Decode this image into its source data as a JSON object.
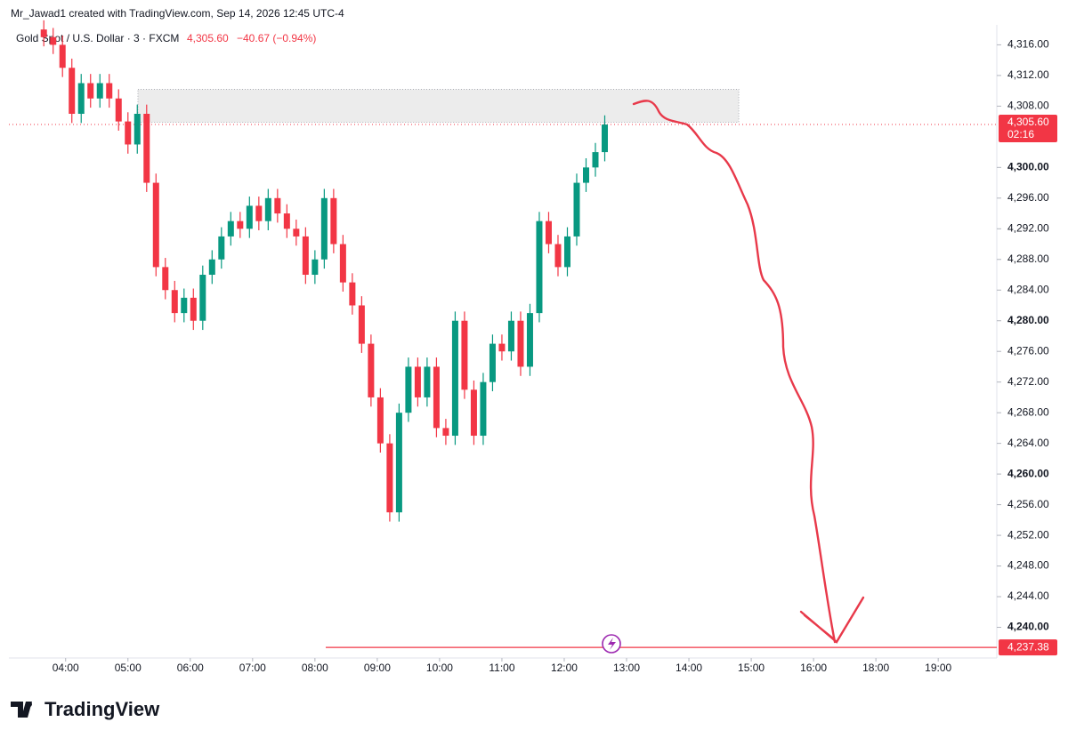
{
  "header": {
    "credit": "Mr_Jawad1 created with TradingView.com, Sep 14, 2026 12:45 UTC-4"
  },
  "chart_data": {
    "type": "candlestick",
    "symbol": "Gold Spot / U.S. Dollar · 3 · FXCM",
    "last_price": "4,305.60",
    "change": "−40.67 (−0.94%)",
    "up_color": "#089981",
    "down_color": "#f23645",
    "x": [
      3.65,
      3.8,
      3.95,
      4.1,
      4.25,
      4.4,
      4.55,
      4.7,
      4.85,
      5.0,
      5.15,
      5.3,
      5.45,
      5.6,
      5.75,
      5.9,
      6.05,
      6.2,
      6.35,
      6.5,
      6.65,
      6.8,
      6.95,
      7.1,
      7.25,
      7.4,
      7.55,
      7.7,
      7.85,
      8.0,
      8.15,
      8.3,
      8.45,
      8.6,
      8.75,
      8.9,
      9.05,
      9.2,
      9.35,
      9.5,
      9.65,
      9.8,
      9.95,
      10.1,
      10.25,
      10.4,
      10.55,
      10.7,
      10.85,
      11.0,
      11.15,
      11.3,
      11.45,
      11.6,
      11.75,
      11.9,
      12.05,
      12.2,
      12.35,
      12.5,
      12.65
    ],
    "open": [
      4318,
      4317,
      4316,
      4313,
      4307,
      4311,
      4309,
      4311,
      4309,
      4306,
      4303,
      4307,
      4298,
      4287,
      4284,
      4281,
      4283,
      4280,
      4286,
      4288,
      4291,
      4293,
      4292,
      4295,
      4293,
      4296,
      4294,
      4292,
      4291,
      4286,
      4288,
      4296,
      4290,
      4285,
      4282,
      4277,
      4270,
      4264,
      4255,
      4268,
      4274,
      4270,
      4274,
      4266,
      4265,
      4280,
      4271,
      4265,
      4272,
      4277,
      4276,
      4280,
      4274,
      4281,
      4293,
      4290,
      4287,
      4291,
      4298,
      4300,
      4302
    ],
    "high": [
      4319.2,
      4318.2,
      4317.2,
      4314.2,
      4312.2,
      4312.2,
      4312.2,
      4312.2,
      4310.2,
      4307.2,
      4308.2,
      4308.2,
      4299.2,
      4288.2,
      4285.2,
      4284.2,
      4284.2,
      4287.2,
      4289.2,
      4292.2,
      4294.2,
      4294.2,
      4296.2,
      4296.2,
      4297.2,
      4297.2,
      4295.2,
      4293.2,
      4292.2,
      4289.2,
      4297.2,
      4297.2,
      4291.2,
      4286.2,
      4283.2,
      4278.2,
      4271.2,
      4265.2,
      4269.2,
      4275.2,
      4275.2,
      4275.2,
      4275.2,
      4267.2,
      4281.2,
      4281.2,
      4272.2,
      4273.2,
      4278.2,
      4278.2,
      4281.2,
      4281.2,
      4282.2,
      4294.2,
      4294.2,
      4291.2,
      4292.2,
      4299.2,
      4301.2,
      4303.2,
      4306.8
    ],
    "low": [
      4315.8,
      4314.8,
      4311.8,
      4305.8,
      4305.8,
      4307.8,
      4307.8,
      4307.8,
      4304.8,
      4301.8,
      4301.8,
      4296.8,
      4285.8,
      4282.8,
      4279.8,
      4279.8,
      4278.8,
      4278.8,
      4284.8,
      4286.8,
      4289.8,
      4290.8,
      4290.8,
      4291.8,
      4291.8,
      4292.8,
      4290.8,
      4289.8,
      4284.8,
      4284.8,
      4286.8,
      4288.8,
      4283.8,
      4280.8,
      4275.8,
      4268.8,
      4262.8,
      4253.8,
      4253.8,
      4266.8,
      4268.8,
      4268.8,
      4264.8,
      4263.8,
      4263.8,
      4269.8,
      4263.8,
      4263.8,
      4270.8,
      4274.8,
      4274.8,
      4272.8,
      4272.8,
      4279.8,
      4288.8,
      4285.8,
      4285.8,
      4289.8,
      4296.8,
      4298.8,
      4300.8
    ],
    "close": [
      4317,
      4316,
      4313,
      4307,
      4311,
      4309,
      4311,
      4309,
      4306,
      4303,
      4307,
      4298,
      4287,
      4284,
      4281,
      4283,
      4280,
      4286,
      4288,
      4291,
      4293,
      4292,
      4295,
      4293,
      4296,
      4294,
      4292,
      4291,
      4286,
      4288,
      4296,
      4290,
      4285,
      4282,
      4277,
      4270,
      4264,
      4255,
      4268,
      4274,
      4270,
      4274,
      4266,
      4265,
      4280,
      4271,
      4265,
      4272,
      4277,
      4276,
      4280,
      4274,
      4281,
      4293,
      4290,
      4287,
      4291,
      4298,
      4300,
      4302,
      4305.6
    ],
    "xlim": [
      3.09,
      18.94
    ],
    "xticks": [
      {
        "value": 4,
        "label": "04:00"
      },
      {
        "value": 5,
        "label": "05:00"
      },
      {
        "value": 6,
        "label": "06:00"
      },
      {
        "value": 7,
        "label": "07:00"
      },
      {
        "value": 8,
        "label": "08:00"
      },
      {
        "value": 9,
        "label": "09:00"
      },
      {
        "value": 10,
        "label": "10:00"
      },
      {
        "value": 11,
        "label": "11:00"
      },
      {
        "value": 12,
        "label": "12:00"
      },
      {
        "value": 13,
        "label": "13:00"
      },
      {
        "value": 14,
        "label": "14:00"
      },
      {
        "value": 15,
        "label": "15:00"
      },
      {
        "value": 16,
        "label": "16:00"
      },
      {
        "value": 17,
        "label": "18:00"
      },
      {
        "value": 18,
        "label": "19:00"
      }
    ],
    "ylim": [
      4236,
      4318.6
    ],
    "yticks": [
      {
        "value": 4316,
        "label": "4,316.00"
      },
      {
        "value": 4312,
        "label": "4,312.00"
      },
      {
        "value": 4308,
        "label": "4,308.00"
      },
      {
        "value": 4300,
        "label": "4,300.00"
      },
      {
        "value": 4296,
        "label": "4,296.00"
      },
      {
        "value": 4292,
        "label": "4,292.00"
      },
      {
        "value": 4288,
        "label": "4,288.00"
      },
      {
        "value": 4284,
        "label": "4,284.00"
      },
      {
        "value": 4280,
        "label": "4,280.00"
      },
      {
        "value": 4276,
        "label": "4,276.00"
      },
      {
        "value": 4272,
        "label": "4,272.00"
      },
      {
        "value": 4268,
        "label": "4,268.00"
      },
      {
        "value": 4264,
        "label": "4,264.00"
      },
      {
        "value": 4260,
        "label": "4,260.00"
      },
      {
        "value": 4256,
        "label": "4,256.00"
      },
      {
        "value": 4252,
        "label": "4,252.00"
      },
      {
        "value": 4248,
        "label": "4,248.00"
      },
      {
        "value": 4244,
        "label": "4,244.00"
      },
      {
        "value": 4240,
        "label": "4,240.00"
      }
    ],
    "price_line": {
      "value": 4305.6,
      "label": "4,305.60",
      "countdown": "02:16"
    },
    "target_line": {
      "value": 4237.38,
      "label": "4,237.38"
    },
    "zone": {
      "x": [
        5.16,
        14.8
      ],
      "y": [
        4305.9,
        4310.2
      ]
    }
  },
  "footer": {
    "logo": "TradingView"
  }
}
